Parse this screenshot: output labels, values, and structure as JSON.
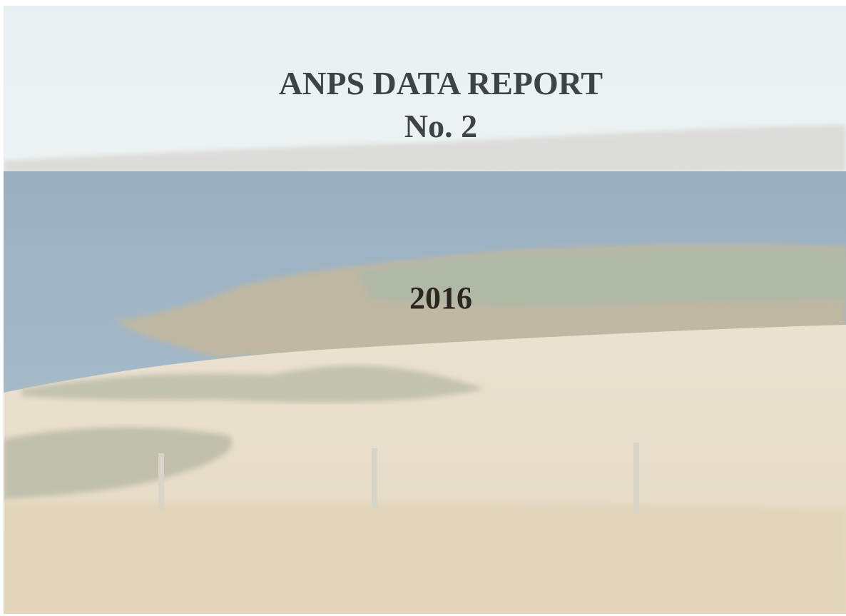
{
  "cover": {
    "title": "ANPS DATA REPORT",
    "number": "No. 2",
    "year": "2016"
  }
}
